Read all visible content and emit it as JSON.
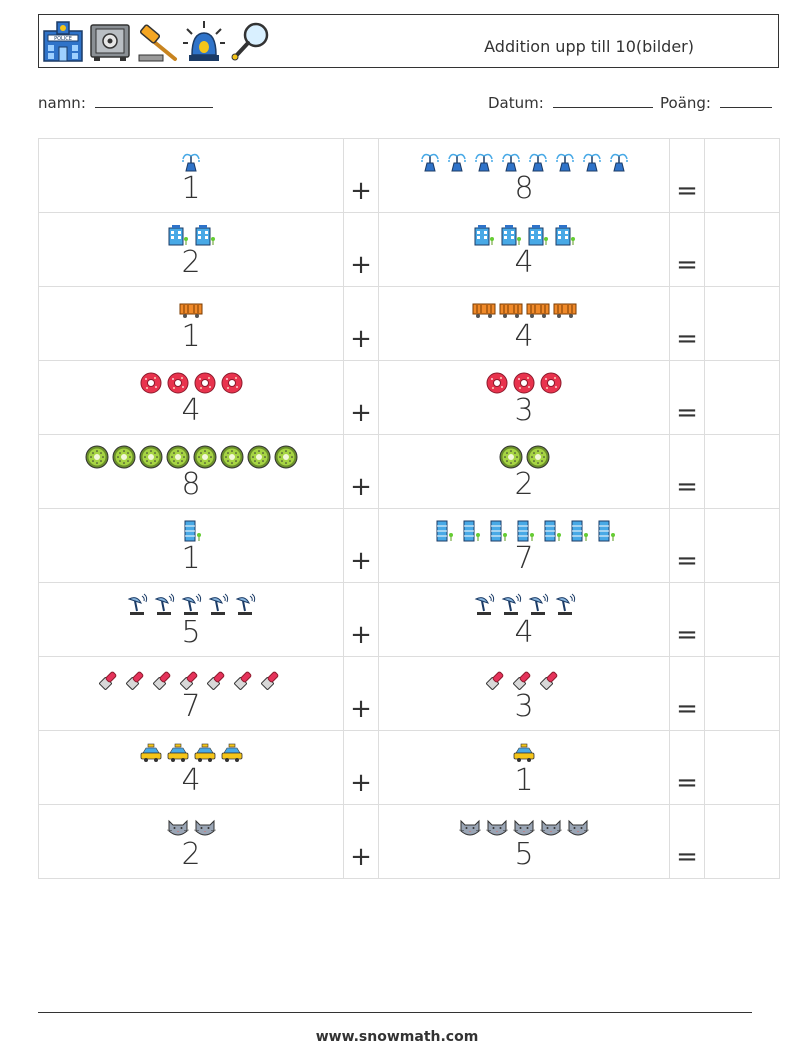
{
  "header": {
    "title": "Addition upp till 10(bilder)",
    "icons": [
      "police-station-icon",
      "safe-icon",
      "gavel-icon",
      "siren-icon",
      "magnifier-icon"
    ]
  },
  "form": {
    "name_label": "namn:",
    "date_label": "Datum:",
    "score_label": "Poäng:"
  },
  "symbols": {
    "plus": "+",
    "equals": "="
  },
  "problems": [
    {
      "a": 1,
      "b": 8,
      "icon": "fountain-icon"
    },
    {
      "a": 2,
      "b": 4,
      "icon": "office-building-icon"
    },
    {
      "a": 1,
      "b": 4,
      "icon": "freight-wagon-icon"
    },
    {
      "a": 4,
      "b": 3,
      "icon": "donut-icon"
    },
    {
      "a": 8,
      "b": 2,
      "icon": "kiwi-slice-icon"
    },
    {
      "a": 1,
      "b": 7,
      "icon": "skyscraper-icon"
    },
    {
      "a": 5,
      "b": 4,
      "icon": "satellite-dish-icon"
    },
    {
      "a": 7,
      "b": 3,
      "icon": "lipstick-icon"
    },
    {
      "a": 4,
      "b": 1,
      "icon": "taxi-icon"
    },
    {
      "a": 2,
      "b": 5,
      "icon": "cat-face-icon"
    }
  ],
  "footer": {
    "url": "www.snowmath.com"
  },
  "colors": {
    "border": "#dddddd",
    "text": "#333333"
  }
}
